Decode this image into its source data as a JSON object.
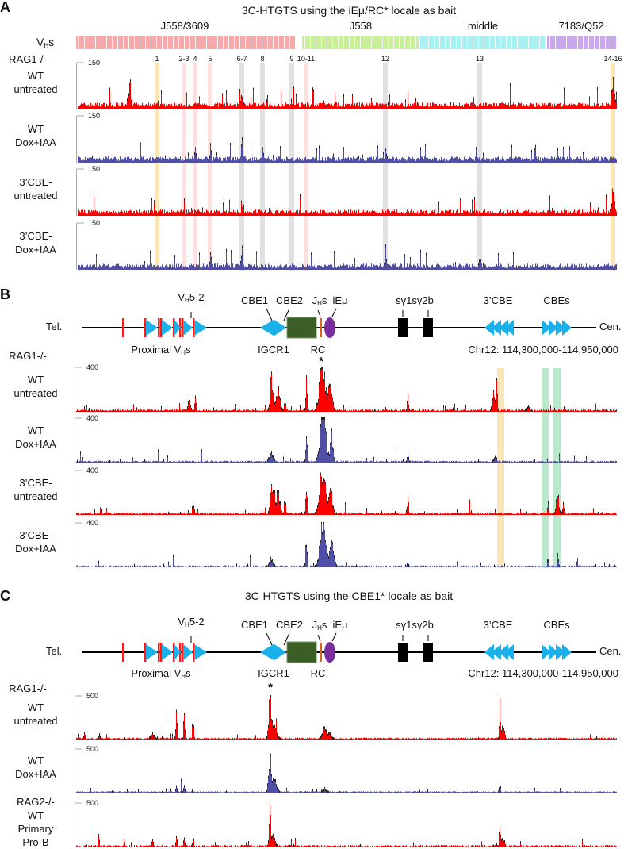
{
  "panel_letters": [
    "A",
    "B",
    "C"
  ],
  "panelA": {
    "title": "3C-HTGTS using the iEμ/RC* locale as bait",
    "vh_label": "V",
    "vh_sub": "H",
    "vh_suffix": "s",
    "families": [
      {
        "name": "J558/3609",
        "color": "#f7a8a8"
      },
      {
        "name": "J558",
        "color": "#c8f09a"
      },
      {
        "name": "middle",
        "color": "#a8f0f2"
      },
      {
        "name": "7183/Q52",
        "color": "#caa8ee"
      }
    ],
    "markers": [
      {
        "label": "1",
        "color": "#f5d27a"
      },
      {
        "label": "2-3",
        "color": "#f9c8c8"
      },
      {
        "label": "4",
        "color": "#f9c8c8"
      },
      {
        "label": "5",
        "color": "#f9c8c8"
      },
      {
        "label": "6-7",
        "color": "#c8c8c8"
      },
      {
        "label": "8",
        "color": "#c8c8c8"
      },
      {
        "label": "9",
        "color": "#c8c8c8"
      },
      {
        "label": "10-11",
        "color": "#f9c8c8"
      },
      {
        "label": "12",
        "color": "#c8c8c8"
      },
      {
        "label": "13",
        "color": "#c8c8c8"
      },
      {
        "label": "14-16",
        "color": "#f5d27a"
      }
    ],
    "genotype": "RAG1-/-",
    "axis_max": "150",
    "tracks": [
      {
        "line1": "WT",
        "line2": "untreated",
        "color": "#ff0000"
      },
      {
        "line1": "WT",
        "line2": "Dox+IAA",
        "color": "#4f4fa6"
      },
      {
        "line1": "3’CBE-",
        "line2": "untreated",
        "color": "#ff0000"
      },
      {
        "line1": "3’CBE-",
        "line2": "Dox+IAA",
        "color": "#4f4fa6"
      }
    ]
  },
  "diagram": {
    "tel": "Tel.",
    "cen": "Cen.",
    "vh52": "5-2",
    "cbe1": "CBE1",
    "cbe2": "CBE2",
    "jh": "s",
    "iemu": "iEμ",
    "sg": "sγ1sγ2b",
    "cbe3": "3’CBE",
    "cbes": "CBEs",
    "proximal": "Proximal V",
    "igcr1": "IGCR1",
    "rc": "RC",
    "chr": "Chr12: 114,300,000-114,950,000"
  },
  "panelB": {
    "genotype": "RAG1-/-",
    "axis_max": "400",
    "bait_marker": "*",
    "tracks": [
      {
        "line1": "WT",
        "line2": "untreated",
        "color": "#ff0000"
      },
      {
        "line1": "WT",
        "line2": "Dox+IAA",
        "color": "#4f4fa6"
      },
      {
        "line1": "3’CBE-",
        "line2": "untreated",
        "color": "#ff0000"
      },
      {
        "line1": "3’CBE-",
        "line2": "Dox+IAA",
        "color": "#4f4fa6"
      }
    ]
  },
  "panelC": {
    "title": "3C-HTGTS using the CBE1* locale as bait",
    "genotype": "RAG1-/-",
    "axis_max": "500",
    "bait_marker": "*",
    "tracks": [
      {
        "lines": [
          "WT",
          "untreated"
        ],
        "color": "#ff0000"
      },
      {
        "lines": [
          "WT",
          "Dox+IAA"
        ],
        "color": "#4f4fa6"
      },
      {
        "lines": [
          "RAG2-/-",
          "WT",
          "Primary",
          "Pro-B"
        ],
        "color": "#ff0000"
      }
    ]
  }
}
